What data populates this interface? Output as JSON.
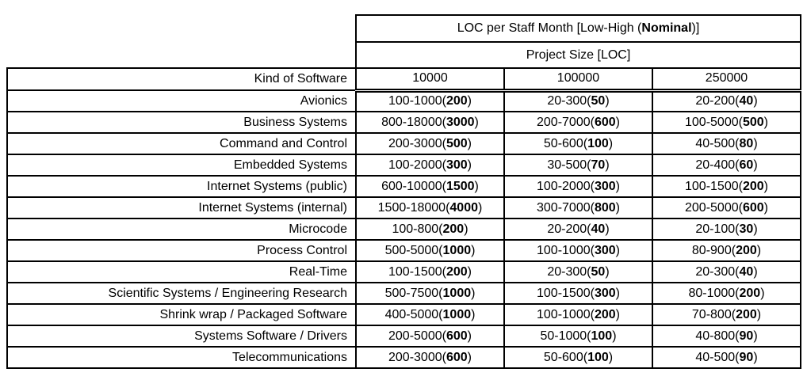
{
  "colors": {
    "background": "#ffffff",
    "border": "#000000",
    "text": "#000000"
  },
  "table": {
    "title_prefix": "LOC per Staff Month [Low-High (",
    "title_bold": "Nominal",
    "title_suffix": ")]",
    "subtitle": "Project Size [LOC]",
    "kind_header": "Kind of Software",
    "size_headers": [
      "10000",
      "100000",
      "250000"
    ],
    "rows": [
      {
        "kind": "Avionics",
        "cells": [
          {
            "range": "100-1000",
            "nominal": "200"
          },
          {
            "range": "20-300",
            "nominal": "50"
          },
          {
            "range": "20-200",
            "nominal": "40"
          }
        ]
      },
      {
        "kind": "Business Systems",
        "cells": [
          {
            "range": "800-18000",
            "nominal": "3000"
          },
          {
            "range": "200-7000",
            "nominal": "600"
          },
          {
            "range": "100-5000",
            "nominal": "500"
          }
        ]
      },
      {
        "kind": "Command and Control",
        "cells": [
          {
            "range": "200-3000",
            "nominal": "500"
          },
          {
            "range": "50-600",
            "nominal": "100"
          },
          {
            "range": "40-500",
            "nominal": "80"
          }
        ]
      },
      {
        "kind": "Embedded Systems",
        "cells": [
          {
            "range": "100-2000",
            "nominal": "300"
          },
          {
            "range": "30-500",
            "nominal": "70"
          },
          {
            "range": "20-400",
            "nominal": "60"
          }
        ]
      },
      {
        "kind": "Internet Systems (public)",
        "cells": [
          {
            "range": "600-10000",
            "nominal": "1500"
          },
          {
            "range": "100-2000",
            "nominal": "300"
          },
          {
            "range": "100-1500",
            "nominal": "200"
          }
        ]
      },
      {
        "kind": "Internet Systems (internal)",
        "cells": [
          {
            "range": "1500-18000",
            "nominal": "4000"
          },
          {
            "range": "300-7000",
            "nominal": "800"
          },
          {
            "range": "200-5000",
            "nominal": "600"
          }
        ]
      },
      {
        "kind": "Microcode",
        "cells": [
          {
            "range": "100-800",
            "nominal": "200"
          },
          {
            "range": "20-200",
            "nominal": "40"
          },
          {
            "range": "20-100",
            "nominal": "30"
          }
        ]
      },
      {
        "kind": "Process Control",
        "cells": [
          {
            "range": "500-5000",
            "nominal": "1000"
          },
          {
            "range": "100-1000",
            "nominal": "300"
          },
          {
            "range": "80-900",
            "nominal": "200"
          }
        ]
      },
      {
        "kind": "Real-Time",
        "cells": [
          {
            "range": "100-1500",
            "nominal": "200"
          },
          {
            "range": "20-300",
            "nominal": "50"
          },
          {
            "range": "20-300",
            "nominal": "40"
          }
        ]
      },
      {
        "kind": "Scientific Systems / Engineering Research",
        "cells": [
          {
            "range": "500-7500",
            "nominal": "1000"
          },
          {
            "range": "100-1500",
            "nominal": "300"
          },
          {
            "range": "80-1000",
            "nominal": "200"
          }
        ]
      },
      {
        "kind": "Shrink wrap / Packaged Software",
        "cells": [
          {
            "range": "400-5000",
            "nominal": "1000"
          },
          {
            "range": "100-1000",
            "nominal": "200"
          },
          {
            "range": "70-800",
            "nominal": "200"
          }
        ]
      },
      {
        "kind": "Systems Software / Drivers",
        "cells": [
          {
            "range": "200-5000",
            "nominal": "600"
          },
          {
            "range": "50-1000",
            "nominal": "100"
          },
          {
            "range": "40-800",
            "nominal": "90"
          }
        ]
      },
      {
        "kind": "Telecommunications",
        "cells": [
          {
            "range": "200-3000",
            "nominal": "600"
          },
          {
            "range": "50-600",
            "nominal": "100"
          },
          {
            "range": "40-500",
            "nominal": "90"
          }
        ]
      }
    ]
  }
}
